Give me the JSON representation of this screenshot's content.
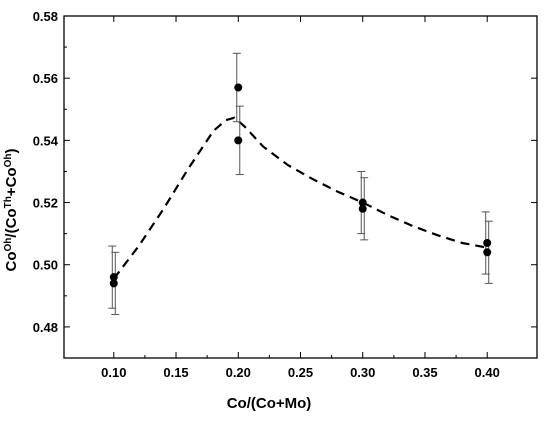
{
  "chart_data": {
    "type": "scatter",
    "xlabel": "Co/(Co+Mo)",
    "ylabel_parts": [
      "Co",
      "Oh",
      "/(Co",
      "Th",
      "+Co",
      "Oh",
      ")"
    ],
    "xlim": [
      0.06,
      0.44
    ],
    "ylim": [
      0.47,
      0.58
    ],
    "x_ticks": [
      0.1,
      0.15,
      0.2,
      0.25,
      0.3,
      0.35,
      0.4
    ],
    "x_tick_labels": [
      "0.10",
      "0.15",
      "0.20",
      "0.25",
      "0.30",
      "0.35",
      "0.40"
    ],
    "y_ticks": [
      0.48,
      0.5,
      0.52,
      0.54,
      0.56,
      0.58
    ],
    "y_tick_labels": [
      "0.48",
      "0.50",
      "0.52",
      "0.54",
      "0.56",
      "0.58"
    ],
    "grid": false,
    "legend": "none",
    "points": [
      {
        "x": 0.1,
        "y": 0.496,
        "err": 0.01
      },
      {
        "x": 0.1,
        "y": 0.494,
        "err": 0.01
      },
      {
        "x": 0.2,
        "y": 0.557,
        "err": 0.011
      },
      {
        "x": 0.2,
        "y": 0.54,
        "err": 0.011
      },
      {
        "x": 0.3,
        "y": 0.52,
        "err": 0.01
      },
      {
        "x": 0.3,
        "y": 0.518,
        "err": 0.01
      },
      {
        "x": 0.4,
        "y": 0.507,
        "err": 0.01
      },
      {
        "x": 0.4,
        "y": 0.504,
        "err": 0.01
      }
    ],
    "fit_curve": {
      "style": "dashed",
      "x": [
        0.1,
        0.12,
        0.14,
        0.16,
        0.18,
        0.19,
        0.197,
        0.205,
        0.22,
        0.24,
        0.26,
        0.28,
        0.3,
        0.32,
        0.34,
        0.36,
        0.38,
        0.4
      ],
      "y": [
        0.4955,
        0.506,
        0.518,
        0.531,
        0.543,
        0.5465,
        0.5473,
        0.5445,
        0.538,
        0.532,
        0.5275,
        0.5235,
        0.52,
        0.516,
        0.5125,
        0.5095,
        0.507,
        0.5055
      ]
    },
    "colors": {
      "marker": "#000000",
      "curve": "#000000",
      "axis": "#000000",
      "errorbar": "#555555"
    }
  }
}
